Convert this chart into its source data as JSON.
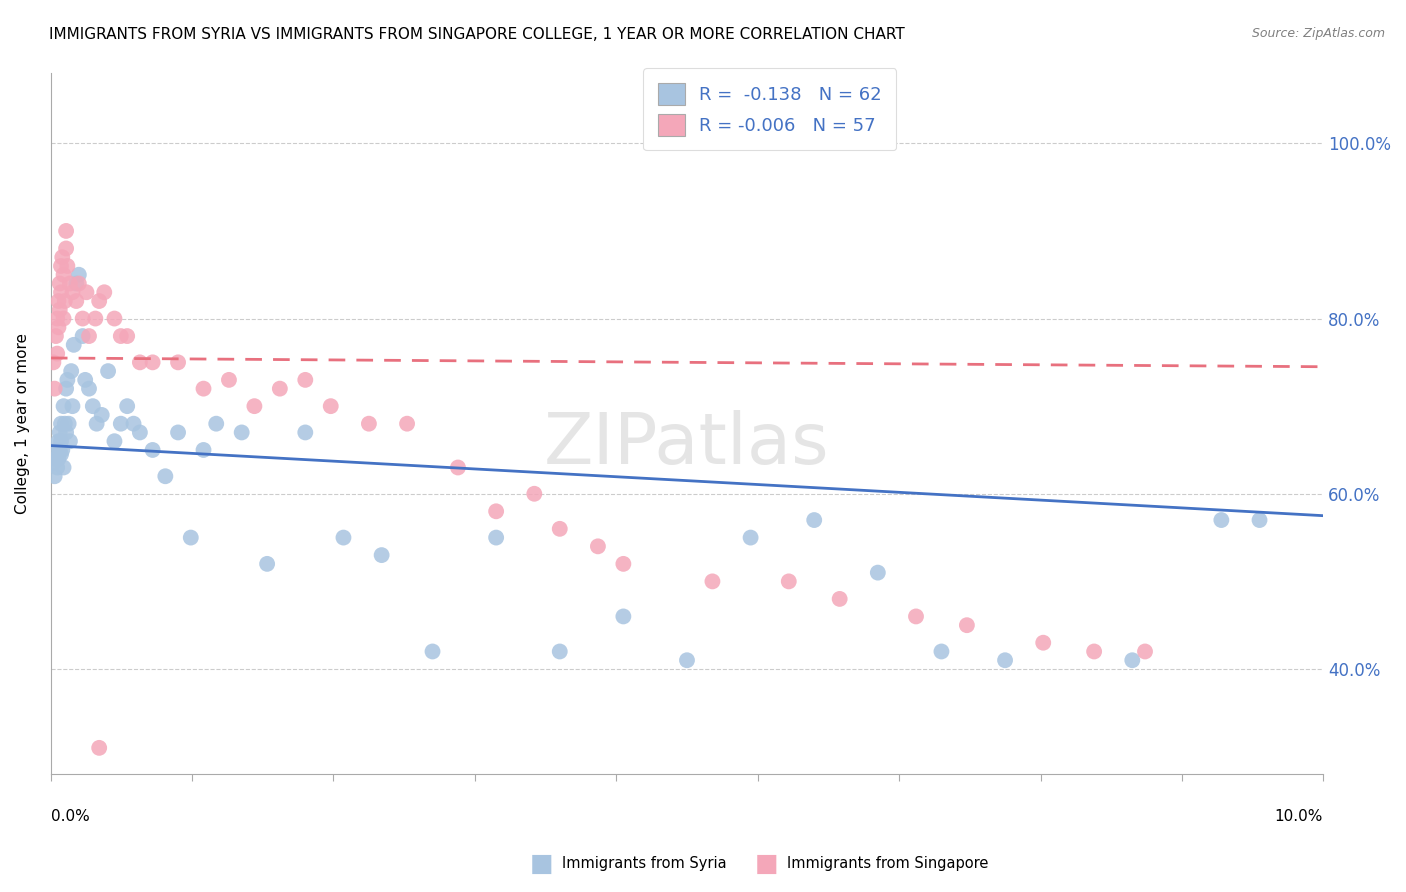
{
  "title": "IMMIGRANTS FROM SYRIA VS IMMIGRANTS FROM SINGAPORE COLLEGE, 1 YEAR OR MORE CORRELATION CHART",
  "source": "Source: ZipAtlas.com",
  "ylabel": "College, 1 year or more",
  "xlim": [
    0.0,
    10.0
  ],
  "ylim": [
    28.0,
    108.0
  ],
  "yticks": [
    40.0,
    60.0,
    80.0,
    100.0
  ],
  "watermark": "ZIPatlas",
  "legend_syria_r": "-0.138",
  "legend_syria_n": "62",
  "legend_singapore_r": "-0.006",
  "legend_singapore_n": "57",
  "syria_color": "#a8c4e0",
  "singapore_color": "#f4a7b9",
  "trend_syria_color": "#4472c4",
  "trend_singapore_color": "#e8707e",
  "background_color": "#ffffff",
  "grid_color": "#cccccc",
  "syria_x": [
    0.02,
    0.03,
    0.04,
    0.05,
    0.05,
    0.06,
    0.06,
    0.07,
    0.07,
    0.08,
    0.08,
    0.09,
    0.1,
    0.1,
    0.11,
    0.12,
    0.12,
    0.13,
    0.14,
    0.15,
    0.16,
    0.17,
    0.18,
    0.2,
    0.22,
    0.25,
    0.27,
    0.3,
    0.33,
    0.36,
    0.4,
    0.45,
    0.5,
    0.55,
    0.6,
    0.65,
    0.7,
    0.8,
    0.9,
    1.0,
    1.1,
    1.2,
    1.3,
    1.5,
    1.7,
    2.0,
    2.3,
    2.6,
    3.0,
    3.5,
    4.0,
    4.5,
    5.0,
    5.5,
    6.0,
    6.5,
    7.0,
    7.5,
    8.5,
    9.2,
    9.5,
    0.08
  ],
  "syria_y": [
    63.5,
    62.0,
    64.0,
    65.0,
    63.0,
    66.0,
    64.0,
    67.0,
    65.0,
    68.0,
    66.0,
    65.0,
    70.0,
    63.0,
    68.0,
    72.0,
    67.0,
    73.0,
    68.0,
    66.0,
    74.0,
    70.0,
    77.0,
    84.0,
    85.0,
    78.0,
    73.0,
    72.0,
    70.0,
    68.0,
    69.0,
    74.0,
    66.0,
    68.0,
    70.0,
    68.0,
    67.0,
    65.0,
    62.0,
    67.0,
    55.0,
    65.0,
    68.0,
    67.0,
    52.0,
    67.0,
    55.0,
    53.0,
    42.0,
    55.0,
    42.0,
    46.0,
    41.0,
    55.0,
    57.0,
    51.0,
    42.0,
    41.0,
    41.0,
    57.0,
    57.0,
    64.5
  ],
  "singapore_x": [
    0.02,
    0.03,
    0.04,
    0.05,
    0.05,
    0.06,
    0.06,
    0.07,
    0.07,
    0.08,
    0.08,
    0.09,
    0.1,
    0.1,
    0.11,
    0.12,
    0.12,
    0.13,
    0.15,
    0.17,
    0.2,
    0.22,
    0.25,
    0.28,
    0.3,
    0.35,
    0.38,
    0.42,
    0.5,
    0.55,
    0.6,
    0.7,
    0.8,
    1.0,
    1.2,
    1.4,
    1.6,
    1.8,
    2.0,
    2.2,
    2.5,
    2.8,
    3.2,
    3.5,
    3.8,
    4.0,
    4.5,
    5.2,
    5.8,
    6.2,
    6.8,
    7.2,
    7.8,
    8.2,
    8.6,
    4.3,
    0.38
  ],
  "singapore_y": [
    75.0,
    72.0,
    78.0,
    80.0,
    76.0,
    82.0,
    79.0,
    84.0,
    81.0,
    86.0,
    83.0,
    87.0,
    85.0,
    80.0,
    82.0,
    90.0,
    88.0,
    86.0,
    84.0,
    83.0,
    82.0,
    84.0,
    80.0,
    83.0,
    78.0,
    80.0,
    82.0,
    83.0,
    80.0,
    78.0,
    78.0,
    75.0,
    75.0,
    75.0,
    72.0,
    73.0,
    70.0,
    72.0,
    73.0,
    70.0,
    68.0,
    68.0,
    63.0,
    58.0,
    60.0,
    56.0,
    52.0,
    50.0,
    50.0,
    48.0,
    46.0,
    45.0,
    43.0,
    42.0,
    42.0,
    54.0,
    31.0
  ],
  "xtick_positions": [
    0.0,
    1.11,
    2.22,
    3.33,
    4.44,
    5.56,
    6.67,
    7.78,
    8.89,
    10.0
  ]
}
